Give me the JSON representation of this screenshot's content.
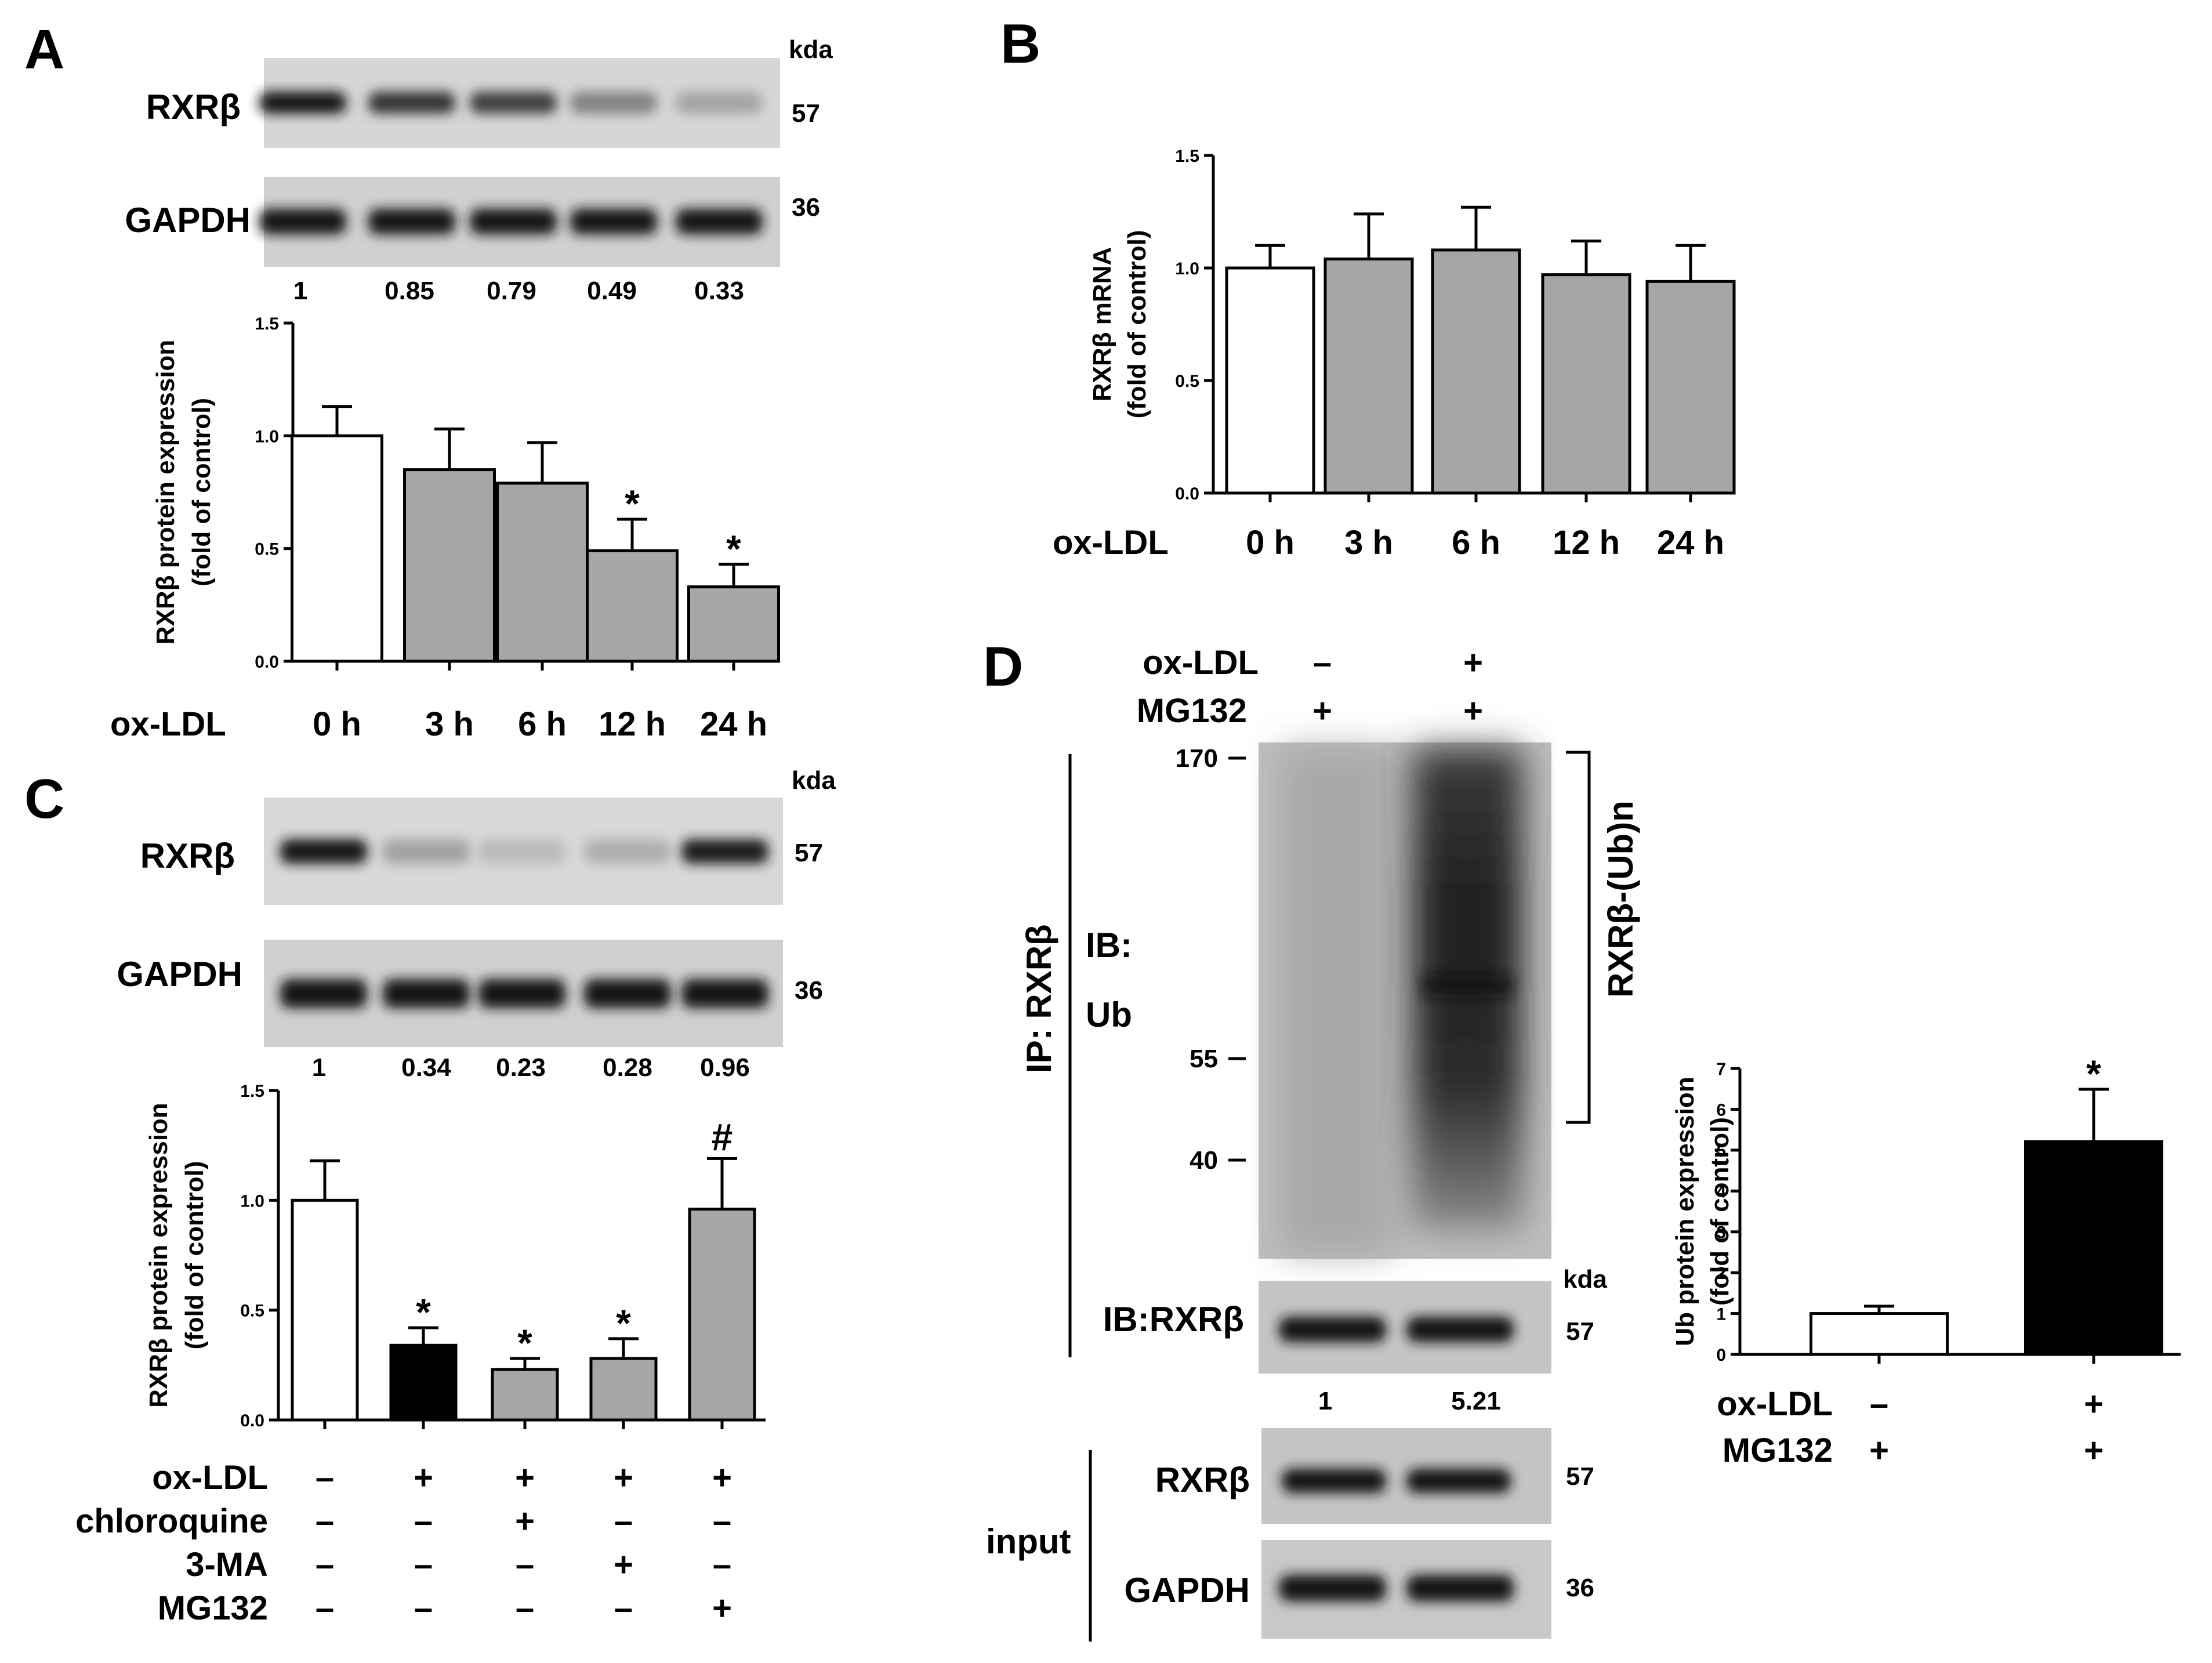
{
  "panel_labels": [
    "A",
    "B",
    "C",
    "D"
  ],
  "blots": {
    "A": {
      "kda_label": "kda",
      "rows": [
        {
          "label": "RXRβ",
          "kda": "57",
          "intensities": [
            1,
            0.85,
            0.79,
            0.49,
            0.33
          ]
        },
        {
          "label": "GAPDH",
          "kda": "36",
          "intensities": [
            1,
            1,
            1,
            1,
            1
          ]
        }
      ],
      "quant": [
        "1",
        "0.85",
        "0.79",
        "0.49",
        "0.33"
      ]
    },
    "C": {
      "kda_label": "kda",
      "rows": [
        {
          "label": "RXRβ",
          "kda": "57",
          "intensities": [
            1,
            0.34,
            0.23,
            0.28,
            0.96
          ]
        },
        {
          "label": "GAPDH",
          "kda": "36",
          "intensities": [
            1,
            1,
            1,
            1,
            1
          ]
        }
      ],
      "quant": [
        "1",
        "0.34",
        "0.23",
        "0.28",
        "0.96"
      ]
    },
    "D": {
      "condition_labels": [
        "ox-LDL",
        "MG132"
      ],
      "conditions": [
        [
          "–",
          "+"
        ],
        [
          "+",
          "+"
        ]
      ],
      "ip_label": "IP:  RXRβ",
      "ib_label_1": "IB:",
      "ib_label_2": "Ub",
      "markers": [
        "170",
        "55",
        "40"
      ],
      "ub_bracket_label": "RXRβ-(Ub)n",
      "kda_label": "kda",
      "ib_rxr_label": "IB:RXRβ",
      "ib_rxr_kda": "57",
      "quant": [
        "1",
        "5.21"
      ],
      "input_label": "input",
      "input_rows": [
        {
          "label": "RXRβ",
          "kda": "57"
        },
        {
          "label": "GAPDH",
          "kda": "36"
        }
      ]
    }
  },
  "chart_data": [
    {
      "panel": "A",
      "type": "bar",
      "ylabel": [
        "RXRβ protein expression",
        "(fold of control)"
      ],
      "ylim": [
        0,
        1.5
      ],
      "yticks": [
        "0.0",
        "0.5",
        "1.0",
        "1.5"
      ],
      "x_row_label": "ox-LDL",
      "categories": [
        "0 h",
        "3 h",
        "6 h",
        "12 h",
        "24 h"
      ],
      "values": [
        1.0,
        0.85,
        0.79,
        0.49,
        0.33
      ],
      "errors": [
        0.13,
        0.18,
        0.18,
        0.14,
        0.1
      ],
      "fills": [
        "#ffffff",
        "#a6a6a6",
        "#a6a6a6",
        "#a6a6a6",
        "#a6a6a6"
      ],
      "significance": [
        "",
        "",
        "",
        "*",
        "*"
      ]
    },
    {
      "panel": "B",
      "type": "bar",
      "ylabel": [
        "RXRβ mRNA",
        "(fold of control)"
      ],
      "ylim": [
        0,
        1.5
      ],
      "yticks": [
        "0.0",
        "0.5",
        "1.0",
        "1.5"
      ],
      "x_row_label": "ox-LDL",
      "categories": [
        "0 h",
        "3 h",
        "6 h",
        "12 h",
        "24 h"
      ],
      "values": [
        1.0,
        1.04,
        1.08,
        0.97,
        0.94
      ],
      "errors": [
        0.1,
        0.2,
        0.19,
        0.15,
        0.16
      ],
      "fills": [
        "#ffffff",
        "#a6a6a6",
        "#a6a6a6",
        "#a6a6a6",
        "#a6a6a6"
      ],
      "significance": [
        "",
        "",
        "",
        "",
        ""
      ]
    },
    {
      "panel": "C",
      "type": "bar",
      "ylabel": [
        "RXRβ protein expression",
        "(fold of control)"
      ],
      "ylim": [
        0,
        1.5
      ],
      "yticks": [
        "0.0",
        "0.5",
        "1.0",
        "1.5"
      ],
      "values": [
        1.0,
        0.34,
        0.23,
        0.28,
        0.96
      ],
      "errors": [
        0.18,
        0.08,
        0.05,
        0.09,
        0.23
      ],
      "fills": [
        "#ffffff",
        "#000000",
        "#a6a6a6",
        "#a6a6a6",
        "#a6a6a6"
      ],
      "significance": [
        "",
        "*",
        "*",
        "*",
        "#"
      ],
      "condition_table": [
        {
          "label": "ox-LDL",
          "signs": [
            "–",
            "+",
            "+",
            "+",
            "+"
          ]
        },
        {
          "label": "chloroquine",
          "signs": [
            "–",
            "–",
            "+",
            "–",
            "–"
          ]
        },
        {
          "label": "3-MA",
          "signs": [
            "–",
            "–",
            "–",
            "+",
            "–"
          ]
        },
        {
          "label": "MG132",
          "signs": [
            "–",
            "–",
            "–",
            "–",
            "+"
          ]
        }
      ]
    },
    {
      "panel": "D",
      "type": "bar",
      "ylabel": [
        "Ub protein expression",
        "(fold of control)"
      ],
      "ylim": [
        0,
        7
      ],
      "yticks": [
        "0",
        "1",
        "2",
        "3",
        "4",
        "5",
        "6",
        "7"
      ],
      "values": [
        1.0,
        5.21
      ],
      "errors": [
        0.18,
        1.28
      ],
      "fills": [
        "#ffffff",
        "#000000"
      ],
      "significance": [
        "",
        "*"
      ],
      "condition_table": [
        {
          "label": "ox-LDL",
          "signs": [
            "–",
            "+"
          ]
        },
        {
          "label": "MG132",
          "signs": [
            "+",
            "+"
          ]
        }
      ]
    }
  ]
}
